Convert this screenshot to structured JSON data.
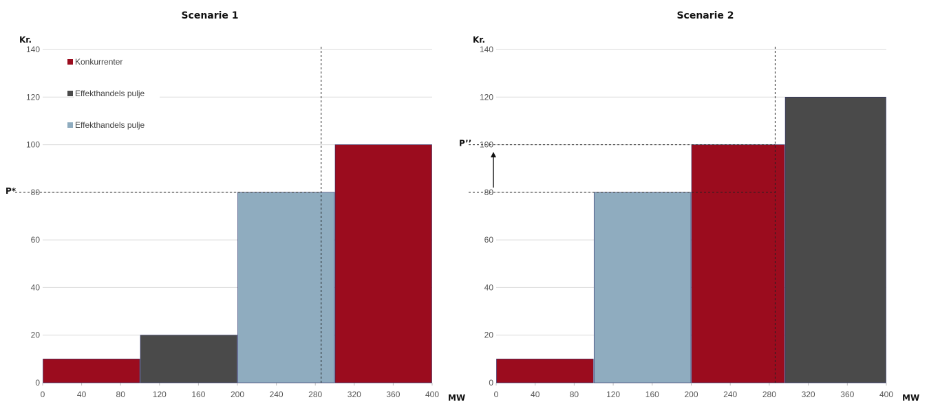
{
  "chart_data": [
    {
      "type": "bar",
      "title": "Scenarie 1",
      "ylabel": "Kr.",
      "xlabel": "MW",
      "xlim": [
        0,
        400
      ],
      "ylim": [
        0,
        140
      ],
      "x_ticks": [
        0,
        40,
        80,
        120,
        160,
        200,
        240,
        280,
        320,
        360,
        400
      ],
      "y_ticks": [
        0,
        20,
        40,
        60,
        80,
        100,
        120,
        140
      ],
      "grid": true,
      "legend": {
        "placement": "top-left",
        "entries": [
          {
            "label": "Konkurrenter",
            "color": "#9b0c1e"
          },
          {
            "label": "Effekthandels pulje",
            "color": "#4a4a4a"
          },
          {
            "label": "Effekthandels pulje",
            "color": "#8facbf"
          }
        ]
      },
      "blocks": [
        {
          "x_start": 0,
          "x_end": 100,
          "value": 10,
          "color": "#9b0c1e"
        },
        {
          "x_start": 100,
          "x_end": 200,
          "value": 20,
          "color": "#4a4a4a"
        },
        {
          "x_start": 200,
          "x_end": 300,
          "value": 80,
          "color": "#8facbf"
        },
        {
          "x_start": 300,
          "x_end": 400,
          "value": 100,
          "color": "#9b0c1e"
        }
      ],
      "vertical_dashed_x": 286,
      "horizontal_dashed": [
        {
          "y": 80,
          "label": "P*",
          "x_end": 286
        }
      ],
      "arrow": null
    },
    {
      "type": "bar",
      "title": "Scenarie 2",
      "ylabel": "Kr.",
      "xlabel": "MW",
      "xlim": [
        0,
        400
      ],
      "ylim": [
        0,
        140
      ],
      "x_ticks": [
        0,
        40,
        80,
        120,
        160,
        200,
        240,
        280,
        320,
        360,
        400
      ],
      "y_ticks": [
        0,
        20,
        40,
        60,
        80,
        100,
        120,
        140
      ],
      "grid": true,
      "legend": null,
      "blocks": [
        {
          "x_start": 0,
          "x_end": 100,
          "value": 10,
          "color": "#9b0c1e"
        },
        {
          "x_start": 100,
          "x_end": 200,
          "value": 80,
          "color": "#8facbf"
        },
        {
          "x_start": 200,
          "x_end": 296,
          "value": 100,
          "color": "#9b0c1e"
        },
        {
          "x_start": 296,
          "x_end": 400,
          "value": 120,
          "color": "#4a4a4a"
        }
      ],
      "vertical_dashed_x": 286,
      "horizontal_dashed": [
        {
          "y": 100,
          "label": "P’’",
          "x_end": 286
        },
        {
          "y": 80,
          "label": "",
          "x_end": 286
        }
      ],
      "arrow": {
        "from_y": 82,
        "to_y": 97
      }
    }
  ]
}
